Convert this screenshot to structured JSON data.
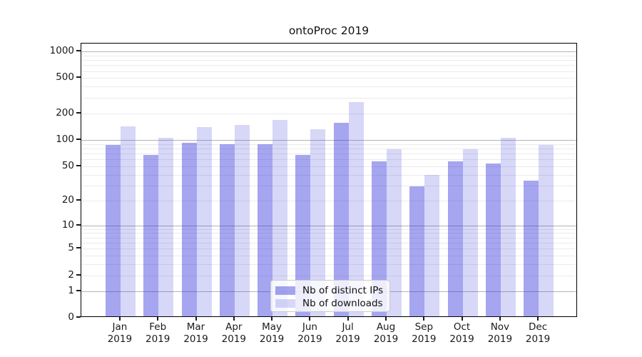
{
  "title": "ontoProc 2019",
  "chart_data": {
    "type": "bar",
    "title": "ontoProc 2019",
    "categories": [
      "Jan",
      "Feb",
      "Mar",
      "Apr",
      "May",
      "Jun",
      "Jul",
      "Aug",
      "Sep",
      "Oct",
      "Nov",
      "Dec"
    ],
    "year_label": "2019",
    "series": [
      {
        "name": "Nb of distinct IPs",
        "color": "rgba(40,40,220,0.42)",
        "values": [
          84,
          65,
          89,
          86,
          86,
          65,
          150,
          55,
          28,
          55,
          52,
          33
        ]
      },
      {
        "name": "Nb of downloads",
        "color": "rgba(40,40,220,0.19)",
        "values": [
          138,
          102,
          135,
          141,
          161,
          127,
          257,
          75,
          38,
          75,
          101,
          84
        ]
      }
    ],
    "yscale": "log1p",
    "ylim": [
      0,
      1226
    ],
    "y_ticks": [
      0,
      1,
      2,
      5,
      10,
      20,
      50,
      100,
      200,
      500,
      1000
    ],
    "y_major_gridlines": [
      1,
      10,
      100,
      1000
    ],
    "y_minor_gridlines": [
      2,
      3,
      4,
      5,
      6,
      7,
      8,
      9,
      20,
      30,
      40,
      50,
      60,
      70,
      80,
      90,
      200,
      300,
      400,
      500,
      600,
      700,
      800,
      900
    ],
    "grid": true,
    "legend_position": "lower center",
    "xlabel": "",
    "ylabel": ""
  },
  "legend": {
    "items": [
      {
        "label": "Nb of distinct IPs"
      },
      {
        "label": "Nb of downloads"
      }
    ]
  },
  "colors": {
    "ips_bar": "rgba(40,40,220,0.42)",
    "downloads_bar": "rgba(40,40,220,0.19)",
    "major_grid": "#b3b3b3",
    "minor_grid": "#ebebeb",
    "axis": "#000000",
    "legend_border": "#cbcbcb",
    "background": "#ffffff"
  }
}
